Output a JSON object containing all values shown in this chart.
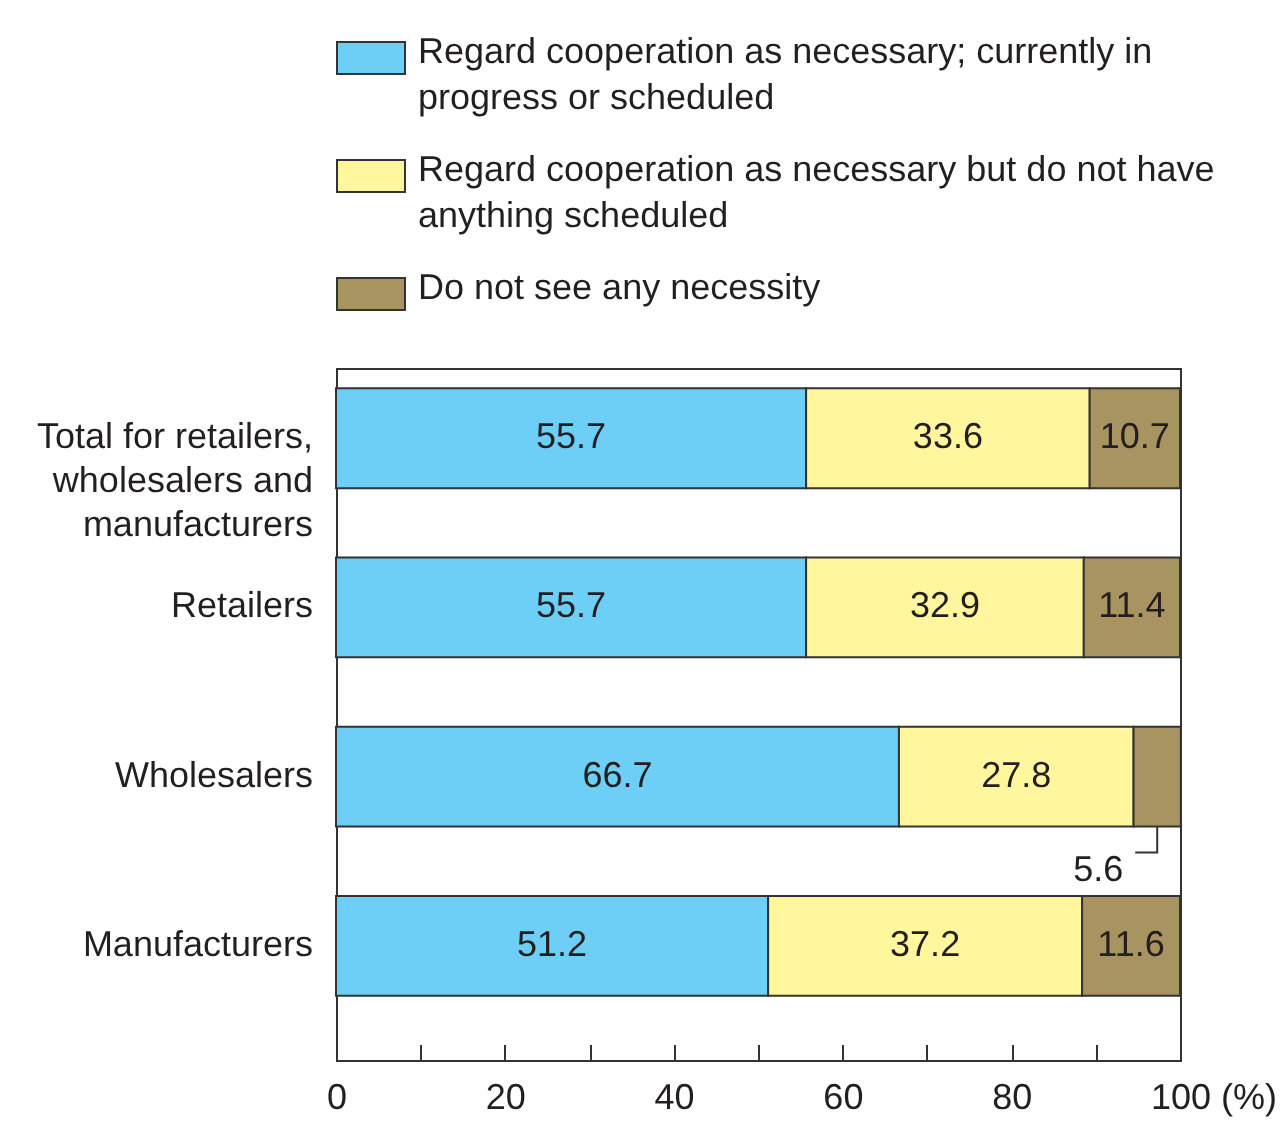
{
  "chart_data": {
    "type": "bar",
    "orientation": "horizontal",
    "stacked": true,
    "categories": [
      "Total for retailers, wholesalers and manufacturers",
      "Retailers",
      "Wholesalers",
      "Manufacturers"
    ],
    "series": [
      {
        "name": "Regard cooperation as necessary; currently in progress or scheduled",
        "color": "#6dcff6",
        "values": [
          55.7,
          55.7,
          66.7,
          51.2
        ]
      },
      {
        "name": "Regard cooperation as necessary but do not have anything scheduled",
        "color": "#fff69d",
        "values": [
          33.6,
          32.9,
          27.8,
          37.2
        ]
      },
      {
        "name": "Do not see any necessity",
        "color": "#a89460",
        "values": [
          10.7,
          11.4,
          5.6,
          11.6
        ]
      }
    ],
    "xlim": [
      0,
      100
    ],
    "xticks": [
      0,
      {
        "value": 10,
        "label": null
      },
      20,
      {
        "value": 30,
        "label": null
      },
      40,
      {
        "value": 50,
        "label": null
      },
      60,
      {
        "value": 70,
        "label": null
      },
      80,
      {
        "value": 90,
        "label": null
      },
      100
    ],
    "xlabel": "(%)",
    "data_labels": true,
    "legend": "top",
    "grid": false
  }
}
